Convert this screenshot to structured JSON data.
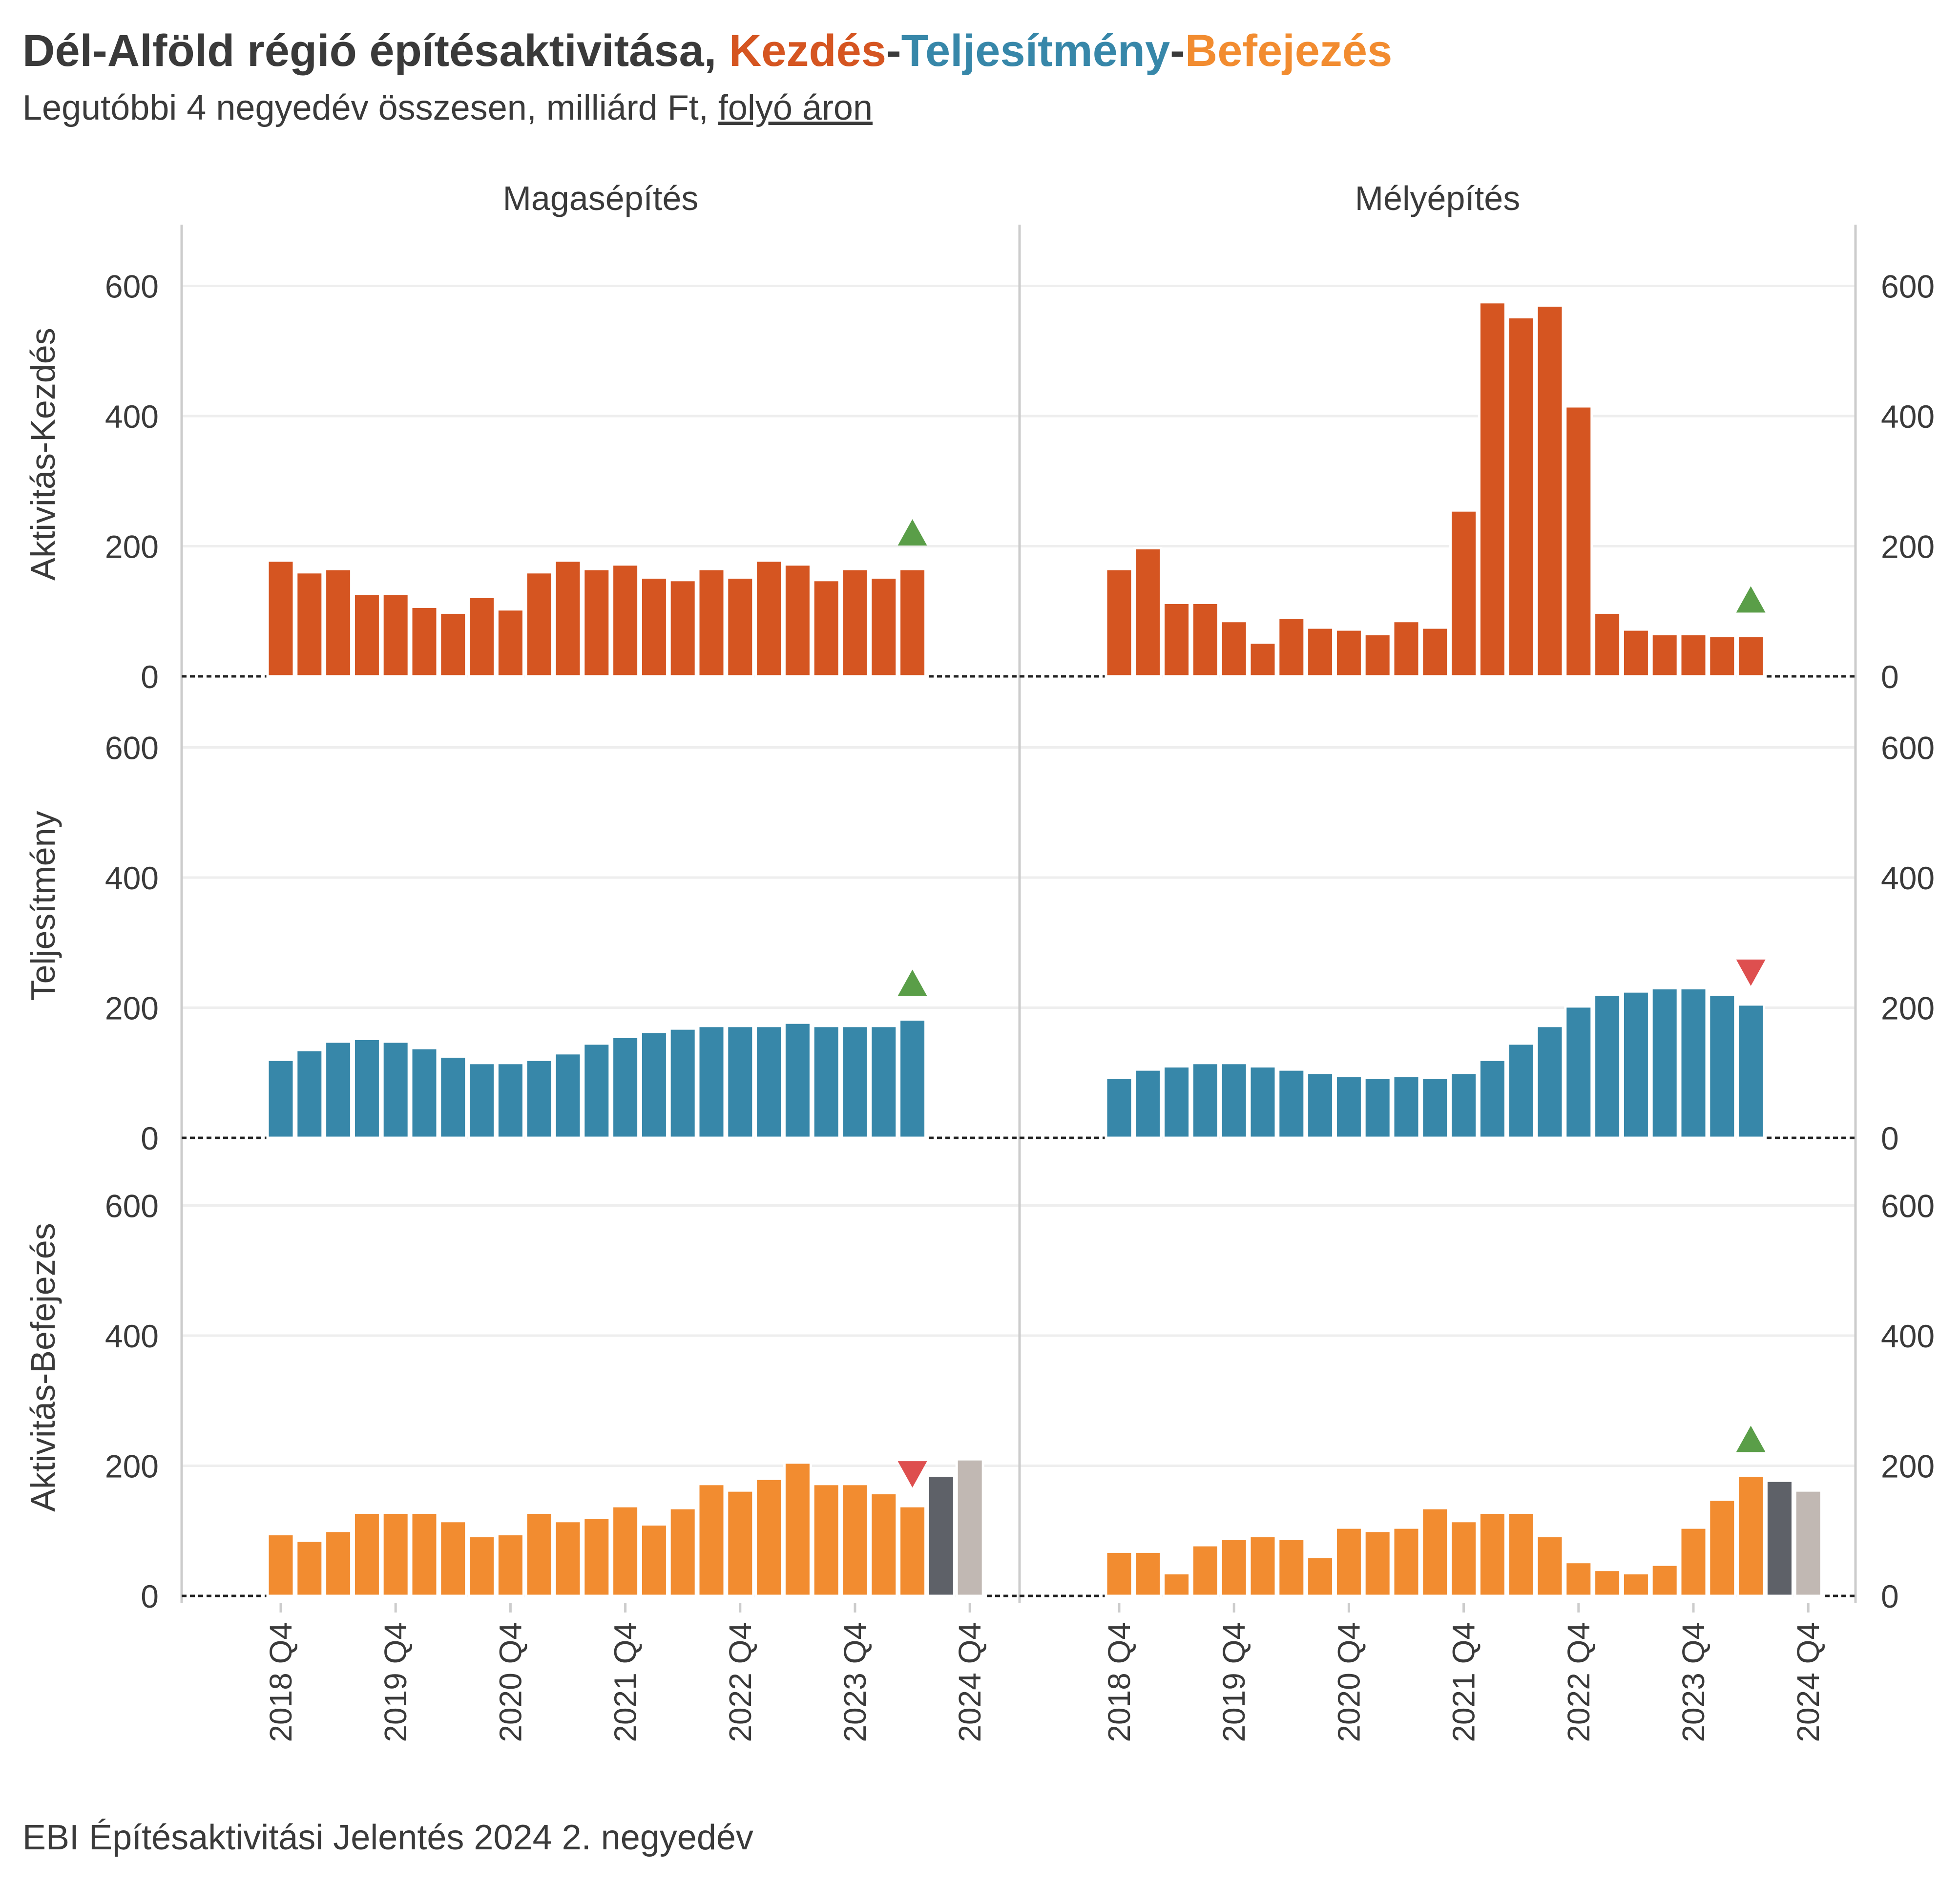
{
  "title": {
    "prefix": "Dél-Alföld régió építésaktivitása, ",
    "kezdes": "Kezdés",
    "sep1": "-",
    "teljesitmeny": "Teljesítmény",
    "sep2": "-",
    "befejezes": "Befejezés"
  },
  "subtitle": {
    "prefix": "Legutóbbi 4 negyedév összesen, milliárd Ft, ",
    "underlined": "folyó áron"
  },
  "caption": "EBI Építésaktivitási Jelentés 2024 2. negyedév",
  "colors": {
    "kezdes": "#D55521",
    "teljesitmeny": "#3787A9",
    "befejezes": "#F28C30",
    "forecast1": "#5E6168",
    "forecast2": "#C1B8B3",
    "up": "#5A9E48",
    "down": "#DE4F4F"
  },
  "chart_data": {
    "type": "bar",
    "columns": [
      "Magasépítés",
      "Mélyépítés"
    ],
    "rows": [
      "Aktivitás-Kezdés",
      "Teljesítmény",
      "Aktivitás-Befejezés"
    ],
    "x_tick_labels": [
      "2018 Q4",
      "2019 Q4",
      "2020 Q4",
      "2021 Q4",
      "2022 Q4",
      "2023 Q4",
      "2024 Q4"
    ],
    "x_range": [
      "2016 Q2",
      "2025 Q2"
    ],
    "first_period": "2018 Q4",
    "ylim": [
      0,
      700
    ],
    "y_ticks": [
      0,
      200,
      400,
      600
    ],
    "grid": true,
    "panels": [
      {
        "column": "Magasépítés",
        "row": "Aktivitás-Kezdés",
        "values": [
          178,
          160,
          165,
          127,
          127,
          107,
          98,
          122,
          103,
          160,
          178,
          165,
          172,
          152,
          148,
          165,
          152,
          178,
          172,
          148,
          165,
          152,
          165
        ],
        "forecast": [],
        "marker": "up"
      },
      {
        "column": "Mélyépítés",
        "row": "Aktivitás-Kezdés",
        "values": [
          165,
          197,
          113,
          113,
          85,
          52,
          90,
          75,
          72,
          65,
          85,
          75,
          255,
          575,
          552,
          570,
          415,
          98,
          72,
          65,
          65,
          62,
          62
        ],
        "forecast": [],
        "marker": "up"
      },
      {
        "column": "Magasépítés",
        "row": "Teljesítmény",
        "values": [
          120,
          135,
          148,
          152,
          148,
          138,
          125,
          115,
          115,
          120,
          130,
          145,
          155,
          163,
          168,
          172,
          172,
          172,
          177,
          172,
          172,
          172,
          182
        ],
        "forecast": [],
        "marker": "up"
      },
      {
        "column": "Mélyépítés",
        "row": "Teljesítmény",
        "values": [
          92,
          105,
          110,
          115,
          115,
          110,
          105,
          100,
          95,
          92,
          95,
          92,
          100,
          120,
          145,
          172,
          202,
          220,
          225,
          230,
          230,
          220,
          205
        ],
        "forecast": [],
        "marker": "down"
      },
      {
        "column": "Magasépítés",
        "row": "Aktivitás-Befejezés",
        "values": [
          95,
          85,
          100,
          128,
          128,
          128,
          115,
          92,
          95,
          128,
          115,
          120,
          138,
          110,
          135,
          172,
          162,
          180,
          205,
          172,
          172,
          158,
          138
        ],
        "forecast": [
          185,
          210
        ],
        "marker": "down"
      },
      {
        "column": "Mélyépítés",
        "row": "Aktivitás-Befejezés",
        "values": [
          68,
          68,
          35,
          78,
          88,
          92,
          88,
          60,
          105,
          100,
          105,
          135,
          115,
          128,
          128,
          92,
          52,
          40,
          35,
          48,
          105,
          148,
          185
        ],
        "forecast": [
          177,
          162
        ],
        "marker": "up"
      }
    ]
  }
}
